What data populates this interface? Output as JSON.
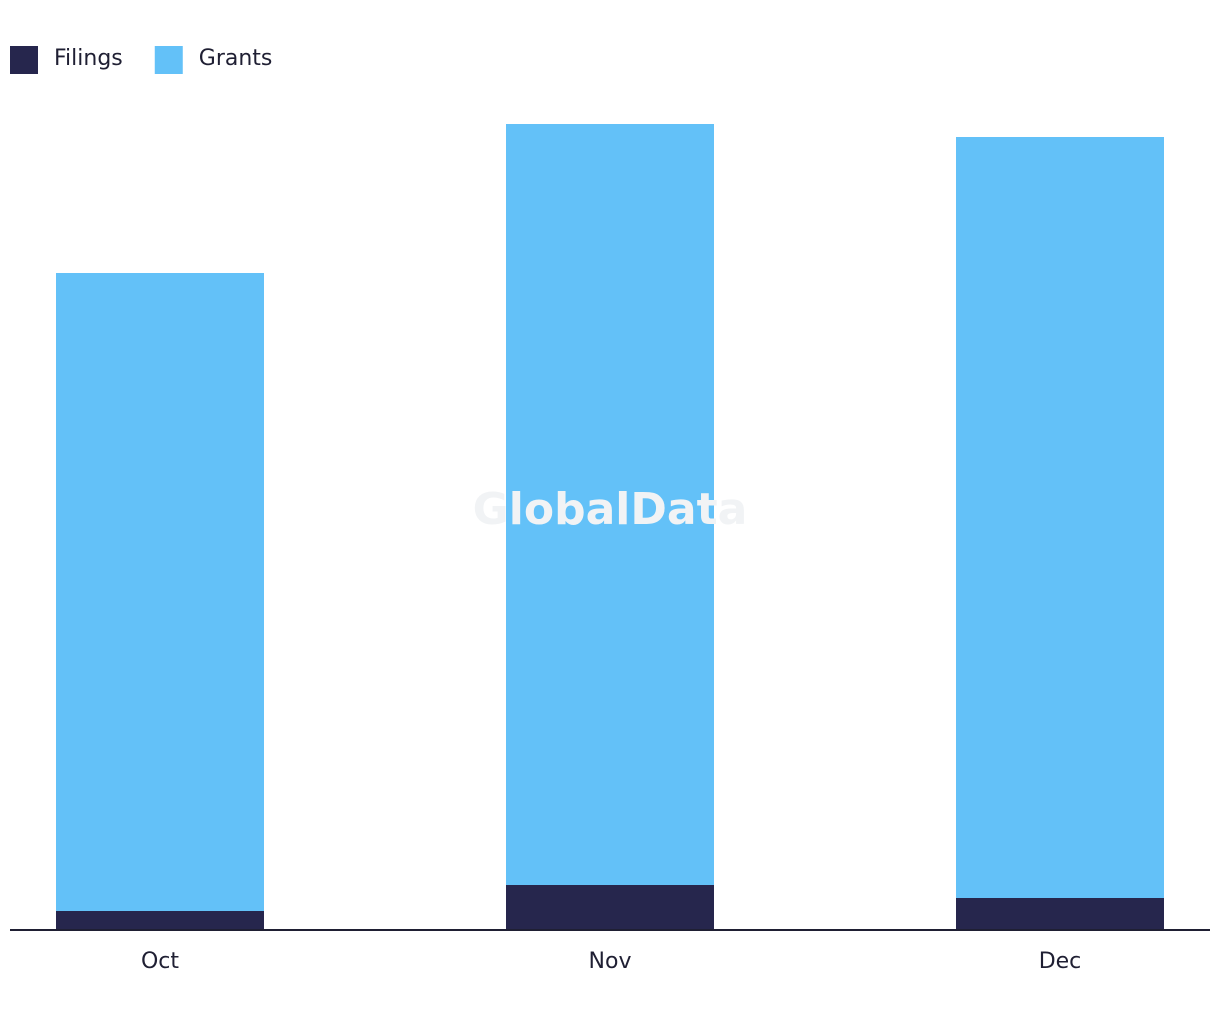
{
  "chart_data": {
    "type": "stacked_bar",
    "categories": [
      "Oct",
      "Nov",
      "Dec"
    ],
    "series": [
      {
        "name": "Filings",
        "color": "#26264d",
        "values": [
          19,
          45,
          32
        ]
      },
      {
        "name": "Grants",
        "color": "#63c1f8",
        "values": [
          638,
          761,
          761
        ]
      }
    ],
    "ylim": [
      0,
      850
    ],
    "legend": "top-left",
    "watermark": "GlobalData"
  }
}
